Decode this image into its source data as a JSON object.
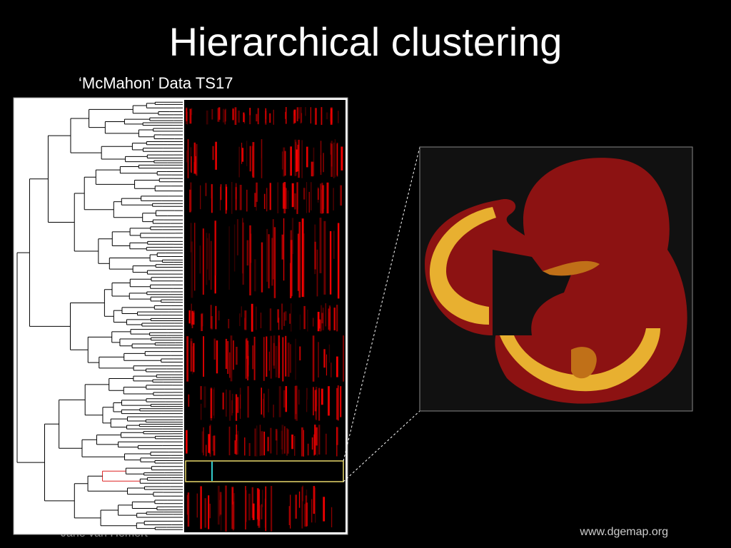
{
  "slide": {
    "title": "Hierarchical clustering",
    "subtitle": "‘McMahon’ Data TS17",
    "author": "Jane van Hemert",
    "source": "www.dgemap.org"
  }
}
